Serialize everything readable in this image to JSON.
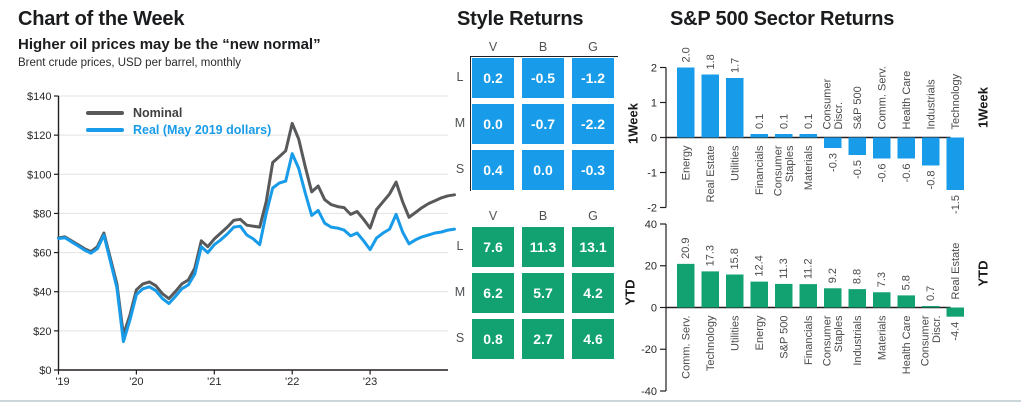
{
  "accent_colors": {
    "blue": "#189BE8",
    "green": "#12A170",
    "gray_line": "#58595B",
    "axis": "#231F20"
  },
  "chart_data": [
    {
      "type": "line",
      "title": "Chart of the Week",
      "subtitle": "Higher oil prices may be the “new normal”",
      "note": "Brent crude prices, USD per barrel, monthly",
      "x_unit": "months from start of chart",
      "xtick_labels": [
        "'19",
        "'20",
        "'21",
        "'22",
        "'23"
      ],
      "xtick_positions": [
        0,
        12,
        24,
        36,
        48
      ],
      "xlim": [
        0,
        60
      ],
      "ylim": [
        0,
        140
      ],
      "ytick_values": [
        0,
        20,
        40,
        60,
        80,
        100,
        120,
        140
      ],
      "ytick_labels": [
        "$0",
        "$20",
        "$40",
        "$60",
        "$80",
        "$100",
        "$120",
        "$140"
      ],
      "grid": true,
      "legend_position": "top-left",
      "series": [
        {
          "name": "Nominal",
          "color": "#58595B",
          "values": [
            67.5,
            68,
            66,
            64,
            62,
            60.5,
            63,
            70,
            57,
            44,
            18,
            28,
            41,
            44,
            45,
            43,
            39,
            36.5,
            40,
            44,
            46,
            52,
            66,
            63,
            67,
            70,
            73,
            76.5,
            77,
            74,
            73.5,
            73,
            86,
            106,
            109,
            112,
            126,
            118,
            104,
            91,
            94,
            87,
            84.5,
            83.5,
            83,
            79.5,
            81,
            77,
            72.5,
            82,
            86,
            90,
            96,
            86,
            78,
            80.5,
            83,
            85,
            86.5,
            88,
            89,
            89.5
          ]
        },
        {
          "name": "Real (May 2019 dollars)",
          "color": "#189BE8",
          "values": [
            67.2,
            67.6,
            65.5,
            63.4,
            61.3,
            59.7,
            62,
            69,
            55.5,
            42,
            14.5,
            25.5,
            38.5,
            41.5,
            42.5,
            40.5,
            36.5,
            34,
            37.5,
            41.5,
            43.5,
            49,
            63,
            60,
            64,
            66.5,
            69.5,
            73,
            73.5,
            69,
            67,
            64,
            80,
            93,
            95.5,
            96.5,
            110.5,
            103,
            90.5,
            79,
            81.5,
            75,
            73,
            72.5,
            71.5,
            68.5,
            70,
            66,
            61.5,
            67.5,
            70,
            72,
            79.5,
            70.5,
            64.5,
            66.5,
            68,
            69,
            70,
            70.5,
            71.5,
            72
          ]
        }
      ]
    },
    {
      "type": "table",
      "title": "Style Returns",
      "period": "1Week",
      "columns": [
        "V",
        "B",
        "G"
      ],
      "rows": [
        "L",
        "M",
        "S"
      ],
      "values": [
        [
          "0.2",
          "-0.5",
          "-1.2"
        ],
        [
          "0.0",
          "-0.7",
          "-2.2"
        ],
        [
          "0.4",
          "0.0",
          "-0.3"
        ]
      ],
      "color": "#189BE8"
    },
    {
      "type": "table",
      "period": "YTD",
      "columns": [
        "V",
        "B",
        "G"
      ],
      "rows": [
        "L",
        "M",
        "S"
      ],
      "values": [
        [
          "7.6",
          "11.3",
          "13.1"
        ],
        [
          "6.2",
          "5.7",
          "4.2"
        ],
        [
          "0.8",
          "2.7",
          "4.6"
        ]
      ],
      "color": "#12A170"
    },
    {
      "type": "bar",
      "title": "S&P 500 Sector Returns",
      "period": "1Week",
      "categories": [
        "Energy",
        "Real Estate",
        "Utilities",
        "Financials",
        "Consumer\nStaples",
        "Materials",
        "Consumer\nDiscr.",
        "S&P 500",
        "Comm. Serv.",
        "Health Care",
        "Industrials",
        "Technology"
      ],
      "values": [
        2.0,
        1.8,
        1.7,
        0.1,
        0.1,
        0.1,
        -0.3,
        -0.5,
        -0.6,
        -0.6,
        -0.8,
        -1.5
      ],
      "value_labels": [
        "2.0",
        "1.8",
        "1.7",
        "0.1",
        "0.1",
        "0.1",
        "-0.3",
        "-0.5",
        "-0.6",
        "-0.6",
        "-0.8",
        "-1.5"
      ],
      "ylim": [
        -2,
        2
      ],
      "ytick_values": [
        2,
        1,
        0,
        -1,
        -2
      ],
      "ytick_labels": [
        "2",
        "1",
        "0",
        "-1",
        "-2"
      ],
      "color": "#189BE8"
    },
    {
      "type": "bar",
      "period": "YTD",
      "categories": [
        "Comm. Serv.",
        "Technology",
        "Utilities",
        "Energy",
        "S&P 500",
        "Financials",
        "Consumer\nStaples",
        "Industrials",
        "Materials",
        "Health Care",
        "Consumer\nDiscr.",
        "Real Estate"
      ],
      "values": [
        20.9,
        17.3,
        15.8,
        12.4,
        11.3,
        11.2,
        9.2,
        8.8,
        7.3,
        5.8,
        0.7,
        -4.4
      ],
      "value_labels": [
        "20.9",
        "17.3",
        "15.8",
        "12.4",
        "11.3",
        "11.2",
        "9.2",
        "8.8",
        "7.3",
        "5.8",
        "0.7",
        "-4.4"
      ],
      "ylim": [
        -40,
        40
      ],
      "ytick_values": [
        40,
        20,
        0,
        -20,
        -40
      ],
      "ytick_labels": [
        "40",
        "20",
        "0",
        "-20",
        "-40"
      ],
      "color": "#12A170"
    }
  ]
}
